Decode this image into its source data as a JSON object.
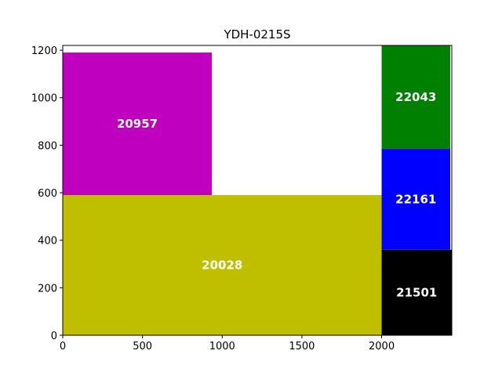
{
  "chart_data": {
    "type": "rectangle-packing",
    "title": "YDH-0215S",
    "xlabel": "",
    "ylabel": "",
    "xlim": [
      0,
      2440
    ],
    "ylim": [
      0,
      1220
    ],
    "x_ticks": [
      0,
      500,
      1000,
      1500,
      2000
    ],
    "y_ticks": [
      0,
      200,
      400,
      600,
      800,
      1000,
      1200
    ],
    "grid": false,
    "rectangles": [
      {
        "label": "20028",
        "x": 0,
        "y": 0,
        "width": 2000,
        "height": 590,
        "color": "#bfbf00"
      },
      {
        "label": "20957",
        "x": 0,
        "y": 590,
        "width": 935,
        "height": 600,
        "color": "#bf00bf"
      },
      {
        "label": "21501",
        "x": 2000,
        "y": 0,
        "width": 440,
        "height": 360,
        "color": "#000000"
      },
      {
        "label": "22161",
        "x": 2000,
        "y": 360,
        "width": 430,
        "height": 425,
        "color": "#0000ff"
      },
      {
        "label": "22043",
        "x": 2000,
        "y": 785,
        "width": 430,
        "height": 435,
        "color": "#008000"
      }
    ]
  }
}
